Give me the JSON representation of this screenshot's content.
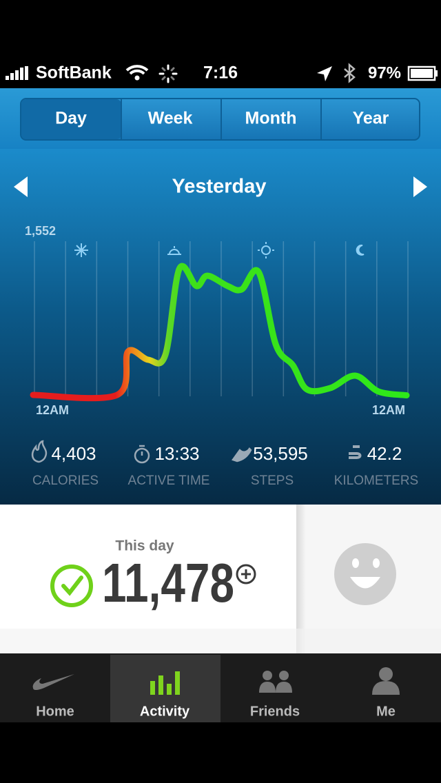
{
  "status_bar": {
    "carrier": "SoftBank",
    "time": "7:16",
    "battery": "97%"
  },
  "period_tabs": [
    "Day",
    "Week",
    "Month",
    "Year"
  ],
  "date_nav": {
    "title": "Yesterday"
  },
  "chart_data": {
    "type": "line",
    "x": [
      0,
      5.4,
      6.1,
      7.4,
      8.5,
      9.4,
      10.5,
      11.2,
      12.5,
      13.4,
      14.5,
      15.6,
      16.7,
      17.6,
      19.1,
      20.7,
      22.2,
      24
    ],
    "values": [
      14,
      14,
      448,
      366,
      414,
      1276,
      1104,
      1207,
      1104,
      1069,
      1242,
      517,
      310,
      69,
      83,
      207,
      48,
      10
    ],
    "xlim": [
      0,
      24
    ],
    "ylim": [
      0,
      1552
    ],
    "yticks": [
      {
        "value": 1552,
        "label": "1,552"
      }
    ],
    "xticks": [
      {
        "value": 0,
        "label": "12AM"
      },
      {
        "value": 2,
        "label": null
      },
      {
        "value": 4,
        "label": null
      },
      {
        "value": 6,
        "label": null
      },
      {
        "value": 8,
        "label": null
      },
      {
        "value": 10,
        "label": null
      },
      {
        "value": 12,
        "label": null
      },
      {
        "value": 14,
        "label": null
      },
      {
        "value": 16,
        "label": null
      },
      {
        "value": 18,
        "label": null
      },
      {
        "value": 20,
        "label": null
      },
      {
        "value": 22,
        "label": null
      },
      {
        "value": 24,
        "label": "12AM"
      }
    ],
    "grid": true
  },
  "stats": [
    {
      "value": "4,403",
      "label": "CALORIES"
    },
    {
      "value": "13:33",
      "label": "ACTIVE TIME"
    },
    {
      "value": "53,595",
      "label": "STEPS"
    },
    {
      "value": "42.2",
      "label": "KILOMETERS"
    }
  ],
  "summary": {
    "title": "This day",
    "value": "11,478"
  },
  "tab_bar": [
    "Home",
    "Activity",
    "Friends",
    "Me"
  ]
}
